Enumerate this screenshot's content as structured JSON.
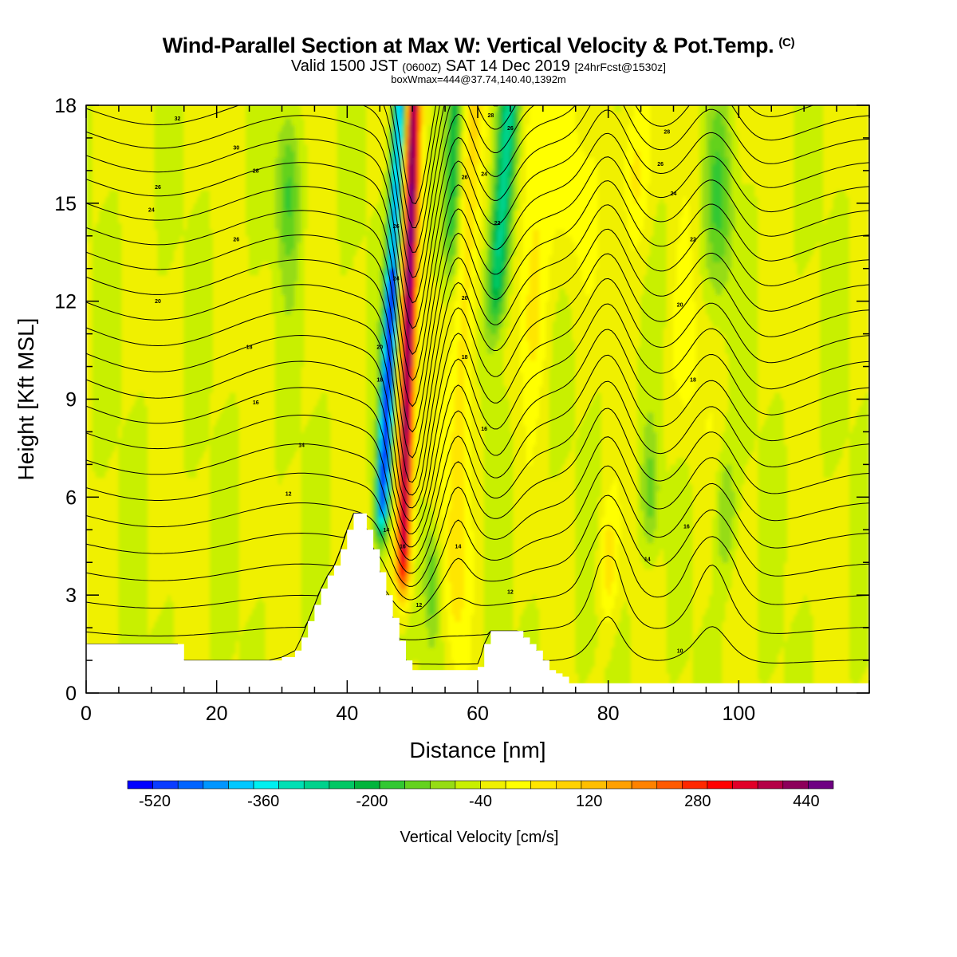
{
  "header": {
    "title": "Wind-Parallel Section at Max W: Vertical Velocity & Pot.Temp.",
    "copyright": "(C)",
    "valid_a": "Valid 1500 JST",
    "valid_zulu": "(0600Z)",
    "valid_b": "SAT 14 Dec 2019",
    "forecast": "[24hrFcst@1530z]",
    "box": "boxWmax=444@37.74,140.40,1392m"
  },
  "chart_data": {
    "type": "heatmap",
    "title": "Wind-Parallel Section at Max W: Vertical Velocity & Pot.Temp.",
    "xlabel": "Distance [nm]",
    "ylabel": "Height [Kft MSL]",
    "xlim": [
      0,
      120
    ],
    "ylim": [
      0,
      18
    ],
    "x_ticks": [
      "0",
      "20",
      "40",
      "60",
      "80",
      "100"
    ],
    "y_ticks": [
      "0",
      "3",
      "6",
      "9",
      "12",
      "15",
      "18"
    ],
    "colorbar": {
      "label": "Vertical Velocity [cm/s]",
      "ticks": [
        "-520",
        "-360",
        "-200",
        "-40",
        "120",
        "280",
        "440"
      ],
      "min": -560,
      "max": 480,
      "step": 40,
      "colors": [
        "#0000ff",
        "#0a3cff",
        "#0064ff",
        "#0096ff",
        "#00c8ff",
        "#00f0f0",
        "#00e0b4",
        "#00d28c",
        "#00c864",
        "#00b43c",
        "#32c832",
        "#64d21e",
        "#96dc14",
        "#c8f000",
        "#f0f000",
        "#ffff00",
        "#ffe600",
        "#ffd200",
        "#ffbe00",
        "#ffa000",
        "#ff8200",
        "#ff5a00",
        "#ff2800",
        "#ff0000",
        "#e10028",
        "#b40046",
        "#8c005a",
        "#6e0082"
      ]
    },
    "terrain": [
      [
        0,
        1.5
      ],
      [
        2,
        1.5
      ],
      [
        4,
        1.5
      ],
      [
        6,
        1.5
      ],
      [
        8,
        1.5
      ],
      [
        10,
        1.5
      ],
      [
        12,
        1.5
      ],
      [
        14,
        1.5
      ],
      [
        15,
        1.0
      ],
      [
        18,
        1.0
      ],
      [
        20,
        1.0
      ],
      [
        22,
        1.0
      ],
      [
        24,
        1.0
      ],
      [
        26,
        1.0
      ],
      [
        28,
        1.0
      ],
      [
        30,
        1.1
      ],
      [
        32,
        1.3
      ],
      [
        33,
        1.7
      ],
      [
        34,
        2.2
      ],
      [
        35,
        2.7
      ],
      [
        36,
        3.2
      ],
      [
        37,
        3.6
      ],
      [
        38,
        3.9
      ],
      [
        39,
        4.4
      ],
      [
        40,
        5.0
      ],
      [
        41,
        5.5
      ],
      [
        42,
        5.5
      ],
      [
        43,
        5.0
      ],
      [
        44,
        4.4
      ],
      [
        45,
        3.7
      ],
      [
        46,
        3.0
      ],
      [
        47,
        2.3
      ],
      [
        48,
        1.6
      ],
      [
        49,
        1.0
      ],
      [
        50,
        0.7
      ],
      [
        52,
        0.7
      ],
      [
        54,
        0.7
      ],
      [
        56,
        0.7
      ],
      [
        58,
        0.7
      ],
      [
        60,
        0.8
      ],
      [
        61,
        1.5
      ],
      [
        62,
        1.9
      ],
      [
        64,
        1.9
      ],
      [
        66,
        1.9
      ],
      [
        67,
        1.7
      ],
      [
        68,
        1.5
      ],
      [
        69,
        1.3
      ],
      [
        70,
        1.0
      ],
      [
        71,
        0.7
      ],
      [
        72,
        0.6
      ],
      [
        73,
        0.5
      ],
      [
        74,
        0.3
      ],
      [
        75,
        0.3
      ],
      [
        80,
        0.3
      ],
      [
        90,
        0.3
      ],
      [
        100,
        0.3
      ],
      [
        110,
        0.3
      ],
      [
        120,
        0.3
      ]
    ],
    "w_features": [
      {
        "x_bottom": 48,
        "z_bottom": 3,
        "x_top": 50,
        "z_top": 18,
        "value": 440,
        "description": "max updraft band"
      },
      {
        "x_bottom": 45.5,
        "z_bottom": 5,
        "x_top": 46.5,
        "z_top": 18,
        "value": -520,
        "description": "max downdraft band"
      },
      {
        "x_bottom": 60,
        "z_bottom": 6,
        "x_top": 66,
        "z_top": 18,
        "value": -280,
        "description": "downdraft band"
      },
      {
        "x_bottom": 55,
        "z_bottom": 13,
        "x_top": 56,
        "z_top": 18,
        "value": -160,
        "description": "downdraft band"
      }
    ],
    "theta_contour_labels": [
      {
        "label": "32",
        "x": 14,
        "z": 17.6
      },
      {
        "label": "30",
        "x": 23,
        "z": 16.7
      },
      {
        "label": "28",
        "x": 26,
        "z": 16.0
      },
      {
        "label": "26",
        "x": 11,
        "z": 15.5
      },
      {
        "label": "24",
        "x": 10,
        "z": 14.8
      },
      {
        "label": "26",
        "x": 23,
        "z": 13.9
      },
      {
        "label": "20",
        "x": 11,
        "z": 12.0
      },
      {
        "label": "18",
        "x": 25,
        "z": 10.6
      },
      {
        "label": "16",
        "x": 26,
        "z": 8.9
      },
      {
        "label": "14",
        "x": 33,
        "z": 7.6
      },
      {
        "label": "12",
        "x": 31,
        "z": 6.1
      },
      {
        "label": "24",
        "x": 47.5,
        "z": 12.7
      },
      {
        "label": "20",
        "x": 45,
        "z": 10.6
      },
      {
        "label": "26",
        "x": 47.5,
        "z": 14.3
      },
      {
        "label": "18",
        "x": 45,
        "z": 9.6
      },
      {
        "label": "14",
        "x": 46,
        "z": 5.0
      },
      {
        "label": "16",
        "x": 48.5,
        "z": 4.5
      },
      {
        "label": "12",
        "x": 51,
        "z": 2.7
      },
      {
        "label": "28",
        "x": 62,
        "z": 17.7
      },
      {
        "label": "26",
        "x": 65,
        "z": 17.3
      },
      {
        "label": "26",
        "x": 58,
        "z": 15.8
      },
      {
        "label": "24",
        "x": 61,
        "z": 15.9
      },
      {
        "label": "22",
        "x": 63,
        "z": 14.4
      },
      {
        "label": "20",
        "x": 58,
        "z": 12.1
      },
      {
        "label": "18",
        "x": 58,
        "z": 10.3
      },
      {
        "label": "16",
        "x": 61,
        "z": 8.1
      },
      {
        "label": "14",
        "x": 57,
        "z": 4.5
      },
      {
        "label": "12",
        "x": 65,
        "z": 3.1
      },
      {
        "label": "28",
        "x": 89,
        "z": 17.2
      },
      {
        "label": "26",
        "x": 88,
        "z": 16.2
      },
      {
        "label": "24",
        "x": 90,
        "z": 15.3
      },
      {
        "label": "22",
        "x": 93,
        "z": 13.9
      },
      {
        "label": "20",
        "x": 91,
        "z": 11.9
      },
      {
        "label": "18",
        "x": 93,
        "z": 9.6
      },
      {
        "label": "16",
        "x": 92,
        "z": 5.1
      },
      {
        "label": "14",
        "x": 86,
        "z": 4.1
      },
      {
        "label": "10",
        "x": 91,
        "z": 1.3
      }
    ]
  }
}
